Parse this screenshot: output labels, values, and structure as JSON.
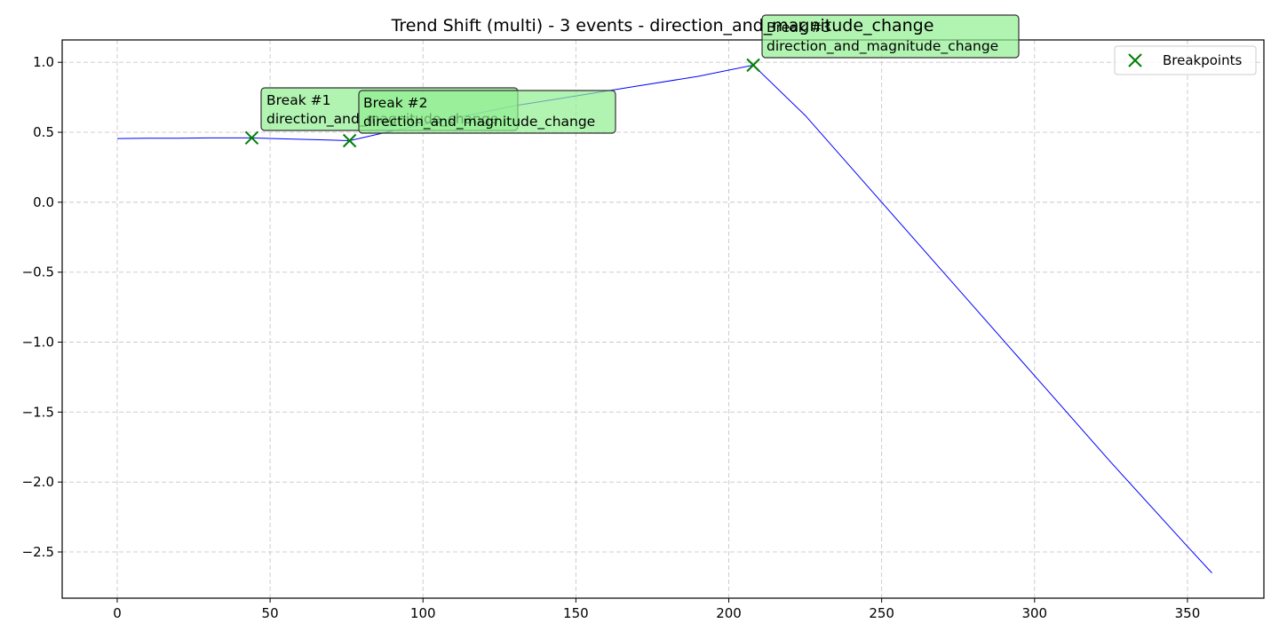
{
  "chart_data": {
    "type": "line",
    "title": "Trend Shift (multi) - 3 events - direction_and_magnitude_change",
    "xlabel": "",
    "ylabel": "",
    "xlim": [
      -18,
      375
    ],
    "ylim": [
      -2.83,
      1.16
    ],
    "xticks": [
      0,
      50,
      100,
      150,
      200,
      250,
      300,
      350
    ],
    "xtick_labels": [
      "0",
      "50",
      "100",
      "150",
      "200",
      "250",
      "300",
      "350"
    ],
    "yticks": [
      1.0,
      0.5,
      0.0,
      -0.5,
      -1.0,
      -1.5,
      -2.0,
      -2.5
    ],
    "ytick_labels": [
      "1.0",
      "0.5",
      "0.0",
      "−0.5",
      "−1.0",
      "−1.5",
      "−2.0",
      "−2.5"
    ],
    "grid": true,
    "series": [
      {
        "color": "#0000ff",
        "x": [
          0,
          10,
          20,
          30,
          44,
          55,
          65,
          76,
          90,
          110,
          130,
          150,
          170,
          190,
          208,
          225,
          250,
          275,
          300,
          325,
          350,
          358
        ],
        "y": [
          0.455,
          0.457,
          0.458,
          0.46,
          0.46,
          0.453,
          0.447,
          0.44,
          0.51,
          0.6,
          0.69,
          0.76,
          0.83,
          0.9,
          0.98,
          0.62,
          0.0,
          -0.62,
          -1.24,
          -1.86,
          -2.46,
          -2.65
        ]
      }
    ],
    "breakpoints": {
      "name": "Breakpoints",
      "color": "#008000",
      "x": [
        44,
        76,
        208
      ],
      "y": [
        0.46,
        0.44,
        0.98
      ]
    },
    "annotations": [
      {
        "line1": "Break #1",
        "line2": "direction_and_magnitude_change"
      },
      {
        "line1": "Break #2",
        "line2": "direction_and_magnitude_change"
      },
      {
        "line1": "Break #3",
        "line2": "direction_and_magnitude_change"
      }
    ],
    "legend": {
      "placement": "top-right",
      "entries": [
        "Breakpoints"
      ]
    }
  }
}
